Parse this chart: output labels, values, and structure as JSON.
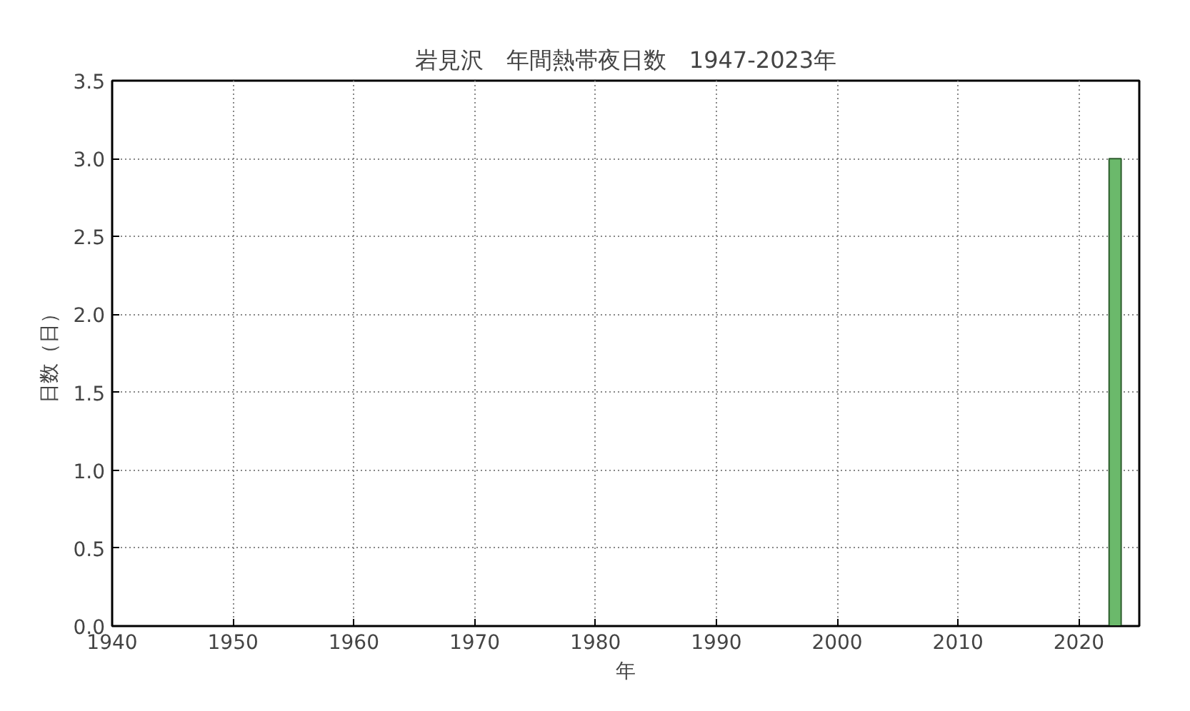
{
  "chart_data": {
    "type": "bar",
    "title": "岩見沢　年間熱帯夜日数　1947-2023年",
    "xlabel": "年",
    "ylabel": "日数（日）",
    "x": [
      2023
    ],
    "values": [
      3
    ],
    "color": "#6bb96b",
    "xlim": [
      1940,
      2025
    ],
    "xticks": [
      1940,
      1950,
      1960,
      1970,
      1980,
      1990,
      2000,
      2010,
      2020
    ],
    "ylim": [
      0,
      3.5
    ],
    "yticks": [
      {
        "value": 0,
        "label": "0.0"
      },
      0.5,
      {
        "value": 1,
        "label": "1.0"
      },
      1.5,
      {
        "value": 2,
        "label": "2.0"
      },
      2.5,
      {
        "value": 3,
        "label": "3.0"
      },
      3.5
    ],
    "grid": true
  }
}
